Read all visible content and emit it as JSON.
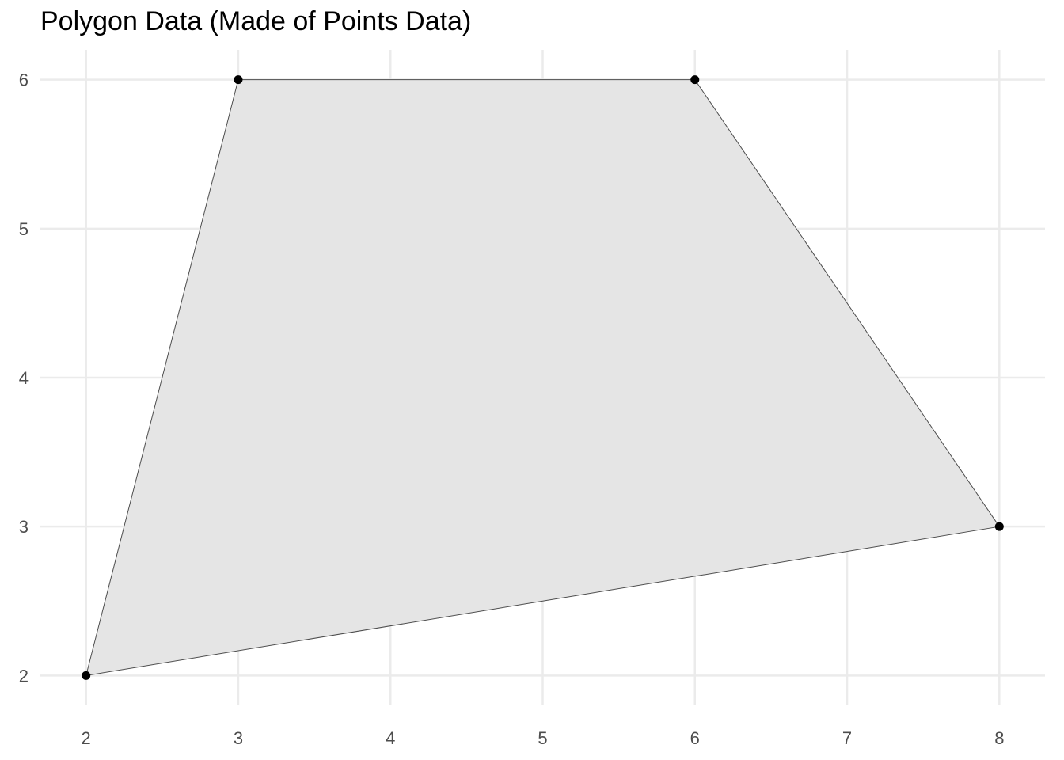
{
  "chart_data": {
    "type": "scatter",
    "title": "Polygon Data (Made of Points Data)",
    "xlabel": "",
    "ylabel": "",
    "xlim": [
      1.7,
      8.3
    ],
    "ylim": [
      1.8,
      6.2
    ],
    "x_ticks": [
      2,
      3,
      4,
      5,
      6,
      7,
      8
    ],
    "y_ticks": [
      2,
      3,
      4,
      5,
      6
    ],
    "grid": true,
    "legend": "none",
    "series": [
      {
        "points": [
          {
            "x": 2,
            "y": 2
          },
          {
            "x": 3,
            "y": 6
          },
          {
            "x": 6,
            "y": 6
          },
          {
            "x": 8,
            "y": 3
          }
        ]
      }
    ],
    "polygon_fill": "#e5e5e5",
    "polygon_stroke": "#4d4d4d",
    "point_color": "#000000",
    "grid_color": "#ebebeb"
  }
}
